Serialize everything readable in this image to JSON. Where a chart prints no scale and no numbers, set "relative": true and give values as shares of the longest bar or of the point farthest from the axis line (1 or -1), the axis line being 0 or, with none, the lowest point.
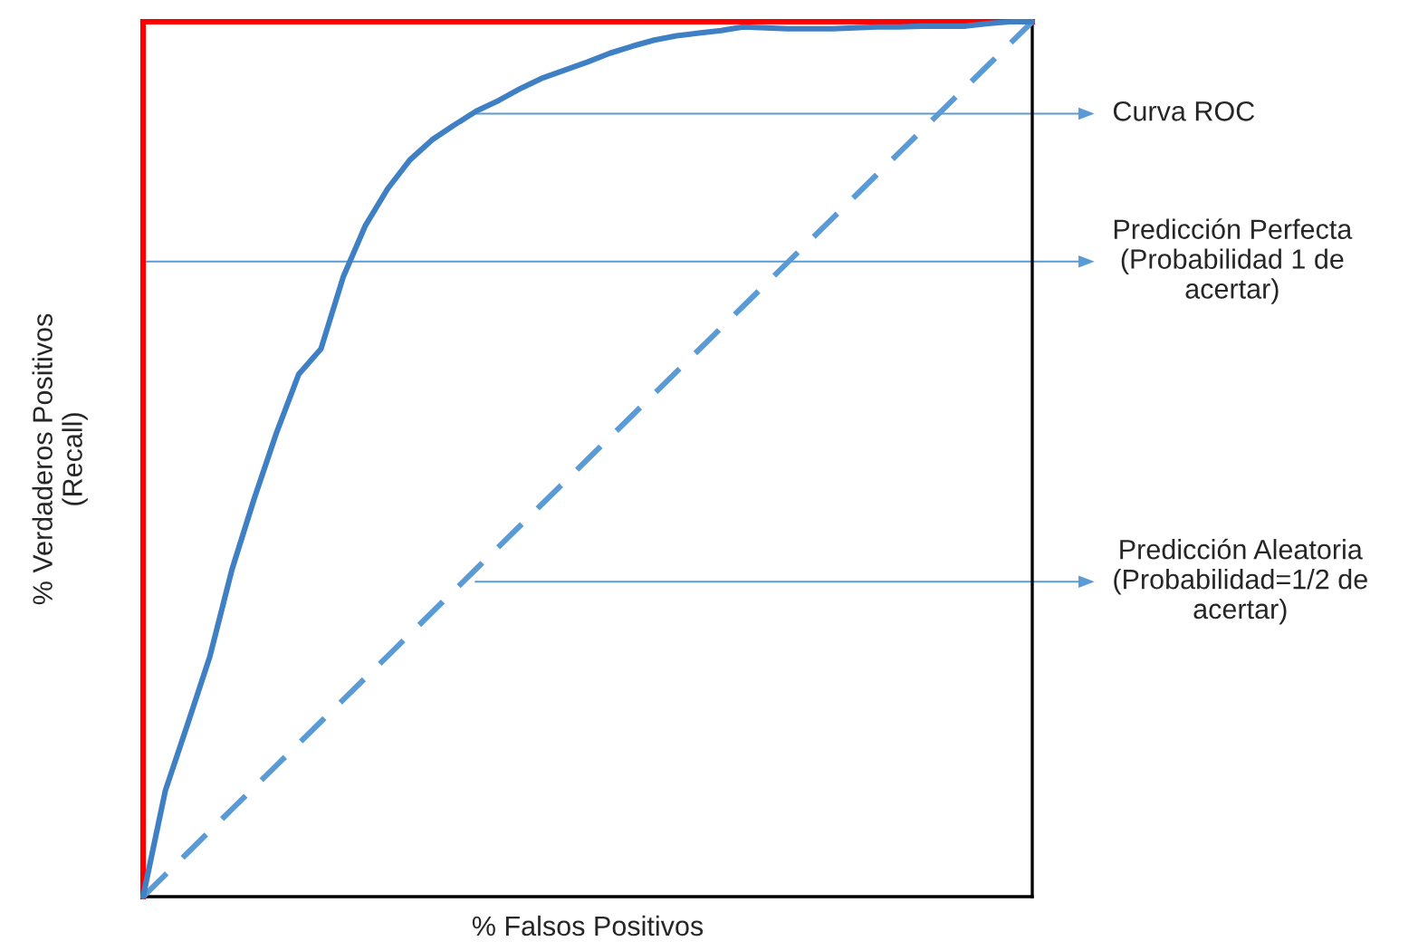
{
  "chart_data": {
    "type": "line",
    "relative": true,
    "xlabel": "% Falsos Positivos",
    "ylabel": "% Verdaderos Positivos\n(Recall)",
    "categories": [
      null,
      null,
      null,
      null,
      null,
      null,
      null,
      null,
      null,
      null,
      null,
      null,
      null,
      null,
      null,
      null,
      null,
      null,
      null,
      null,
      null,
      null,
      null,
      null,
      null,
      null,
      null,
      null,
      null,
      null,
      null,
      null,
      null,
      null,
      null,
      null,
      null,
      null,
      null,
      null,
      null
    ],
    "series": [
      {
        "color": "#5b9bd5",
        "line_style": "dashed",
        "values": [
          0,
          0.025,
          0.05,
          0.075,
          0.1,
          0.125,
          0.15,
          0.175,
          0.2,
          0.225,
          0.25,
          0.275,
          0.3,
          0.325,
          0.35,
          0.375,
          0.4,
          0.425,
          0.45,
          0.475,
          0.5,
          0.525,
          0.55,
          0.575,
          0.6,
          0.625,
          0.65,
          0.675,
          0.7,
          0.725,
          0.75,
          0.775,
          0.8,
          0.825,
          0.85,
          0.875,
          0.9,
          0.925,
          0.95,
          0.975,
          1
        ]
      },
      {
        "color": "#3f7fc4",
        "line_style": "solid",
        "values": [
          0,
          0.121,
          0.197,
          0.274,
          0.374,
          0.455,
          0.53,
          0.597,
          0.626,
          0.708,
          0.767,
          0.809,
          0.842,
          0.865,
          0.882,
          0.898,
          0.91,
          0.924,
          0.936,
          0.945,
          0.954,
          0.964,
          0.972,
          0.979,
          0.984,
          0.987,
          0.99,
          0.994,
          0.993,
          0.992,
          0.992,
          0.992,
          0.993,
          0.994,
          0.994,
          0.995,
          0.995,
          0.995,
          0.998,
          1,
          1
        ]
      }
    ],
    "annotations": [
      "Curva ROC",
      "Predicción Perfecta\n(Probabilidad 1 de\nacertar)",
      "Predicción Aleatoria\n(Probabilidad=1/2 de\nacertar)"
    ]
  }
}
